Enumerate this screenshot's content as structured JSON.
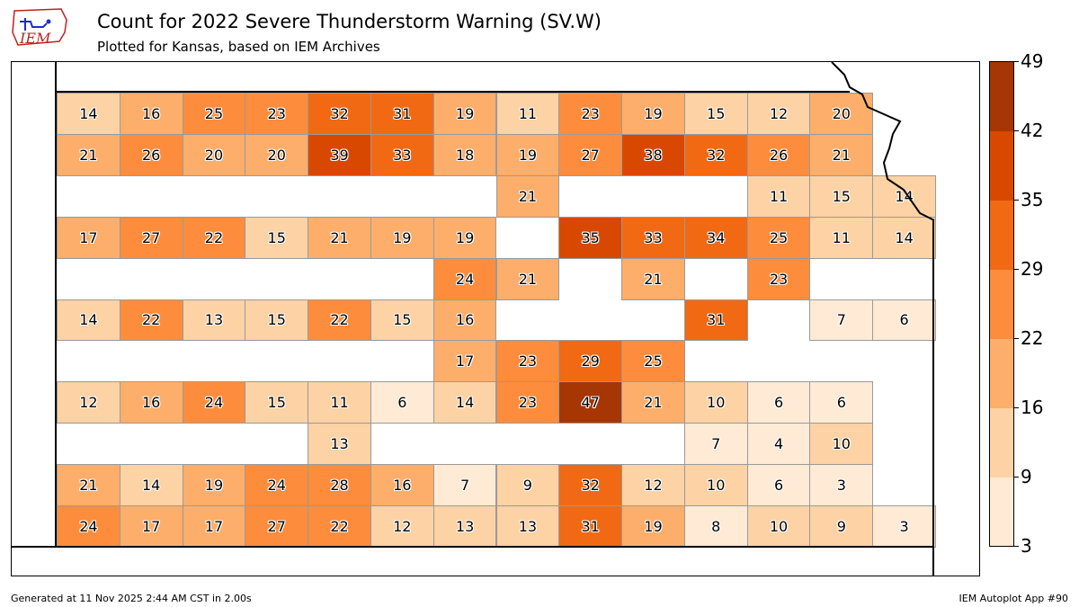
{
  "header": {
    "title": "Count for 2022 Severe Thunderstorm Warning (SV.W)",
    "subtitle": "Plotted for Kansas, based on IEM Archives",
    "logo_text": "IEM"
  },
  "map": {
    "state": "Kansas",
    "counties": [
      {
        "count": 14,
        "row": 0,
        "col": 0
      },
      {
        "count": 16,
        "row": 0,
        "col": 1
      },
      {
        "count": 25,
        "row": 0,
        "col": 2
      },
      {
        "count": 23,
        "row": 0,
        "col": 3
      },
      {
        "count": 32,
        "row": 0,
        "col": 4
      },
      {
        "count": 31,
        "row": 0,
        "col": 5
      },
      {
        "count": 19,
        "row": 0,
        "col": 6
      },
      {
        "count": 11,
        "row": 0,
        "col": 7
      },
      {
        "count": 23,
        "row": 0,
        "col": 8
      },
      {
        "count": 19,
        "row": 0,
        "col": 9
      },
      {
        "count": 15,
        "row": 0,
        "col": 10
      },
      {
        "count": 12,
        "row": 0,
        "col": 11
      },
      {
        "count": 20,
        "row": 0,
        "col": 12
      },
      {
        "count": 21,
        "row": 1,
        "col": 0
      },
      {
        "count": 26,
        "row": 1,
        "col": 1
      },
      {
        "count": 20,
        "row": 1,
        "col": 2
      },
      {
        "count": 20,
        "row": 1,
        "col": 3
      },
      {
        "count": 39,
        "row": 1,
        "col": 4
      },
      {
        "count": 33,
        "row": 1,
        "col": 5
      },
      {
        "count": 18,
        "row": 1,
        "col": 6
      },
      {
        "count": 19,
        "row": 1,
        "col": 7
      },
      {
        "count": 27,
        "row": 1,
        "col": 8
      },
      {
        "count": 38,
        "row": 1,
        "col": 9
      },
      {
        "count": 32,
        "row": 1,
        "col": 10
      },
      {
        "count": 26,
        "row": 1,
        "col": 11
      },
      {
        "count": 21,
        "row": 1,
        "col": 12
      },
      {
        "count": 11,
        "row": 2,
        "col": 11
      },
      {
        "count": 15,
        "row": 2,
        "col": 12
      },
      {
        "count": 14,
        "row": 2,
        "col": 13
      },
      {
        "count": 21,
        "row": 2,
        "col": 7
      },
      {
        "count": 17,
        "row": 3,
        "col": 0
      },
      {
        "count": 27,
        "row": 3,
        "col": 1
      },
      {
        "count": 22,
        "row": 3,
        "col": 2
      },
      {
        "count": 15,
        "row": 3,
        "col": 3
      },
      {
        "count": 21,
        "row": 3,
        "col": 4
      },
      {
        "count": 19,
        "row": 3,
        "col": 5
      },
      {
        "count": 19,
        "row": 3,
        "col": 6
      },
      {
        "count": 35,
        "row": 3,
        "col": 8
      },
      {
        "count": 33,
        "row": 3,
        "col": 9
      },
      {
        "count": 34,
        "row": 3,
        "col": 10
      },
      {
        "count": 25,
        "row": 3,
        "col": 11
      },
      {
        "count": 11,
        "row": 3,
        "col": 12
      },
      {
        "count": 14,
        "row": 3,
        "col": 13
      },
      {
        "count": 24,
        "row": 4,
        "col": 6
      },
      {
        "count": 21,
        "row": 4,
        "col": 7
      },
      {
        "count": 21,
        "row": 4,
        "col": 9
      },
      {
        "count": 23,
        "row": 4,
        "col": 11
      },
      {
        "count": 14,
        "row": 5,
        "col": 0
      },
      {
        "count": 22,
        "row": 5,
        "col": 1
      },
      {
        "count": 13,
        "row": 5,
        "col": 2
      },
      {
        "count": 15,
        "row": 5,
        "col": 3
      },
      {
        "count": 22,
        "row": 5,
        "col": 4
      },
      {
        "count": 15,
        "row": 5,
        "col": 5
      },
      {
        "count": 16,
        "row": 5,
        "col": 6
      },
      {
        "count": 7,
        "row": 5,
        "col": 12
      },
      {
        "count": 6,
        "row": 5,
        "col": 13
      },
      {
        "count": 31,
        "row": 5,
        "col": 10
      },
      {
        "count": 17,
        "row": 6,
        "col": 6
      },
      {
        "count": 23,
        "row": 6,
        "col": 7
      },
      {
        "count": 29,
        "row": 6,
        "col": 8
      },
      {
        "count": 25,
        "row": 6,
        "col": 9
      },
      {
        "count": 12,
        "row": 7,
        "col": 0
      },
      {
        "count": 16,
        "row": 7,
        "col": 1
      },
      {
        "count": 24,
        "row": 7,
        "col": 2
      },
      {
        "count": 15,
        "row": 7,
        "col": 3
      },
      {
        "count": 11,
        "row": 7,
        "col": 4
      },
      {
        "count": 6,
        "row": 7,
        "col": 5
      },
      {
        "count": 14,
        "row": 7,
        "col": 6
      },
      {
        "count": 23,
        "row": 7,
        "col": 7
      },
      {
        "count": 47,
        "row": 7,
        "col": 8
      },
      {
        "count": 21,
        "row": 7,
        "col": 9
      },
      {
        "count": 10,
        "row": 7,
        "col": 10
      },
      {
        "count": 6,
        "row": 7,
        "col": 11
      },
      {
        "count": 6,
        "row": 7,
        "col": 12
      },
      {
        "count": 13,
        "row": 8,
        "col": 4
      },
      {
        "count": 7,
        "row": 8,
        "col": 10
      },
      {
        "count": 4,
        "row": 8,
        "col": 11
      },
      {
        "count": 10,
        "row": 8,
        "col": 12
      },
      {
        "count": 21,
        "row": 9,
        "col": 0
      },
      {
        "count": 14,
        "row": 9,
        "col": 1
      },
      {
        "count": 19,
        "row": 9,
        "col": 2
      },
      {
        "count": 24,
        "row": 9,
        "col": 3
      },
      {
        "count": 28,
        "row": 9,
        "col": 4
      },
      {
        "count": 16,
        "row": 9,
        "col": 5
      },
      {
        "count": 7,
        "row": 9,
        "col": 6
      },
      {
        "count": 9,
        "row": 9,
        "col": 7
      },
      {
        "count": 32,
        "row": 9,
        "col": 8
      },
      {
        "count": 12,
        "row": 9,
        "col": 9
      },
      {
        "count": 10,
        "row": 9,
        "col": 10
      },
      {
        "count": 6,
        "row": 9,
        "col": 11
      },
      {
        "count": 3,
        "row": 9,
        "col": 12
      },
      {
        "count": 24,
        "row": 10,
        "col": 0
      },
      {
        "count": 17,
        "row": 10,
        "col": 1
      },
      {
        "count": 17,
        "row": 10,
        "col": 2
      },
      {
        "count": 27,
        "row": 10,
        "col": 3
      },
      {
        "count": 22,
        "row": 10,
        "col": 4
      },
      {
        "count": 12,
        "row": 10,
        "col": 5
      },
      {
        "count": 13,
        "row": 10,
        "col": 6
      },
      {
        "count": 13,
        "row": 10,
        "col": 7
      },
      {
        "count": 31,
        "row": 10,
        "col": 8
      },
      {
        "count": 19,
        "row": 10,
        "col": 9
      },
      {
        "count": 8,
        "row": 10,
        "col": 10
      },
      {
        "count": 10,
        "row": 10,
        "col": 11
      },
      {
        "count": 9,
        "row": 10,
        "col": 12
      },
      {
        "count": 3,
        "row": 10,
        "col": 13
      }
    ]
  },
  "colorbar": {
    "ticks": [
      "49",
      "42",
      "35",
      "29",
      "22",
      "16",
      "9",
      "3"
    ],
    "bins": [
      {
        "from": 3,
        "to": 9,
        "color": "#feead5"
      },
      {
        "from": 9,
        "to": 16,
        "color": "#fdd2a5"
      },
      {
        "from": 16,
        "to": 22,
        "color": "#fdae6b"
      },
      {
        "from": 22,
        "to": 29,
        "color": "#fd8d3c"
      },
      {
        "from": 29,
        "to": 35,
        "color": "#f16913"
      },
      {
        "from": 35,
        "to": 42,
        "color": "#d94801"
      },
      {
        "from": 42,
        "to": 49,
        "color": "#a63603"
      }
    ]
  },
  "footer": {
    "generated": "Generated at 11 Nov 2025 2:44 AM CST in 2.00s",
    "app": "IEM Autoplot App #90"
  }
}
